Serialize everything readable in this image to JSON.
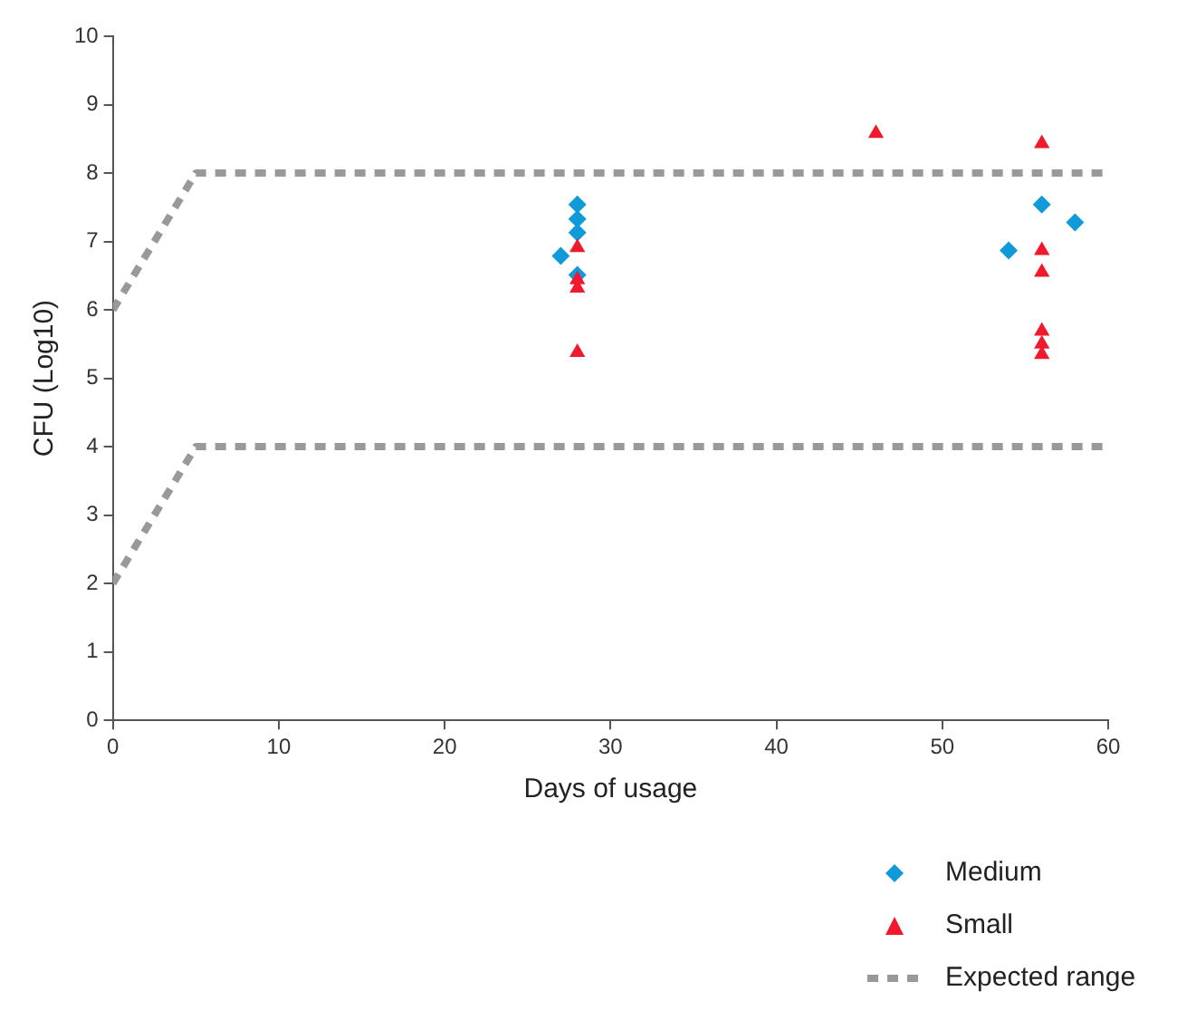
{
  "chart_data": {
    "type": "scatter",
    "xlabel": "Days of usage",
    "ylabel": "CFU (Log10)",
    "xlim": [
      0,
      60
    ],
    "xticks": [
      0,
      10,
      20,
      30,
      40,
      50,
      60
    ],
    "ylim": [
      0,
      10
    ],
    "yticks": [
      0,
      1,
      2,
      3,
      4,
      5,
      6,
      7,
      8,
      9,
      10
    ],
    "grid": false,
    "legend": "bottom right",
    "series": [
      {
        "name": "Medium",
        "marker": "diamond",
        "color": "#119ad9",
        "x": [
          28,
          28,
          28,
          28,
          27,
          56,
          58,
          54
        ],
        "values": [
          7.54,
          7.33,
          7.13,
          6.51,
          6.79,
          7.54,
          7.28,
          6.87
        ]
      },
      {
        "name": "Small",
        "marker": "triangle",
        "color": "#f0192e",
        "x": [
          28,
          28,
          28,
          28,
          46,
          56,
          56,
          56,
          56,
          56,
          56
        ],
        "values": [
          6.91,
          6.44,
          6.32,
          5.38,
          8.58,
          8.43,
          6.87,
          6.55,
          5.69,
          5.5,
          5.35
        ]
      },
      {
        "name": "Expected range",
        "type": "line",
        "marker": "none",
        "line_style": "dashed",
        "color": "#999999",
        "x": [
          0,
          5,
          60
        ],
        "values": [
          6,
          8,
          8
        ]
      },
      {
        "type": "line",
        "marker": "none",
        "line_style": "dashed",
        "color": "#999999",
        "x": [
          0,
          5,
          60
        ],
        "values": [
          2,
          4,
          4
        ]
      }
    ]
  }
}
